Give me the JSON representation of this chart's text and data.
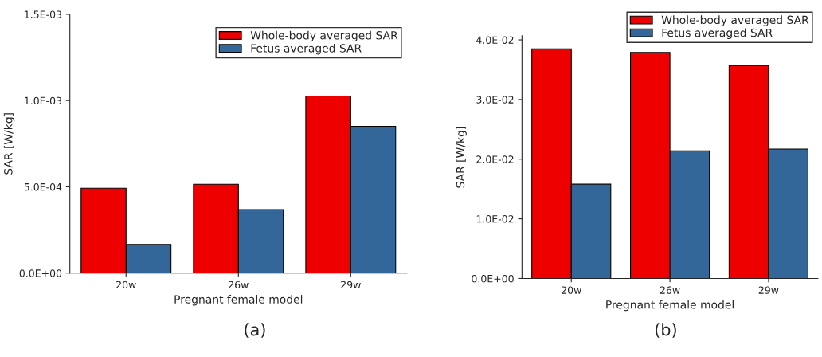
{
  "chart_data": [
    {
      "type": "bar",
      "xlabel": "Pregnant female model",
      "ylabel": "SAR [W/kg]",
      "categories": [
        "20w",
        "26w",
        "29w"
      ],
      "series": [
        {
          "name": "Whole-body averaged SAR",
          "color": "#ee0000",
          "values": [
            0.000492,
            0.000515,
            0.001026
          ]
        },
        {
          "name": "Fetus averaged SAR",
          "color": "#336699",
          "values": [
            0.000166,
            0.000368,
            0.000851
          ]
        }
      ],
      "ylim": [
        0,
        0.0015
      ],
      "yticks": [
        {
          "value": 0,
          "label": "0.0E+00"
        },
        {
          "value": 0.0005,
          "label": "5.0E-04"
        },
        {
          "value": 0.001,
          "label": "1.0E-03"
        },
        {
          "value": 0.0015,
          "label": "1.5E-03"
        }
      ],
      "legend": "top right",
      "annotations": [
        "(a)"
      ]
    },
    {
      "type": "bar",
      "xlabel": "Pregnant female model",
      "ylabel": "SAR [W/kg]",
      "categories": [
        "20w",
        "26w",
        "29w"
      ],
      "series": [
        {
          "name": "Whole-body averaged SAR",
          "color": "#ee0000",
          "values": [
            0.0385,
            0.0379,
            0.0357
          ]
        },
        {
          "name": "Fetus averaged SAR",
          "color": "#336699",
          "values": [
            0.0158,
            0.0214,
            0.0217
          ]
        }
      ],
      "ylim": [
        0,
        0.0407
      ],
      "yticks": [
        {
          "value": 0,
          "label": "0.0E+00"
        },
        {
          "value": 0.01,
          "label": "1.0E-02"
        },
        {
          "value": 0.02,
          "label": "2.0E-02"
        },
        {
          "value": 0.03,
          "label": "3.0E-02"
        },
        {
          "value": 0.04,
          "label": "4.0E-02"
        }
      ],
      "legend": "top right",
      "annotations": [
        "(b)"
      ]
    }
  ]
}
